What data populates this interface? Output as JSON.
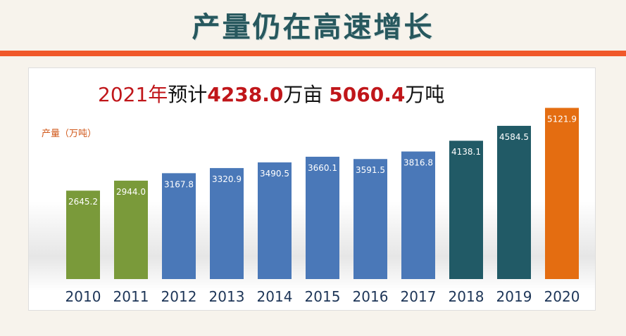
{
  "page": {
    "title": "产量仍在高速增长"
  },
  "headline": {
    "year": "2021年",
    "part1": "预计",
    "area_value": "4238.0",
    "area_unit": "万亩",
    "output_value": "5060.4",
    "output_unit": "万吨"
  },
  "colors": {
    "title": "#27585e",
    "rule": "#f0582a",
    "green": "#7a9a3a",
    "blue": "#4a78b8",
    "teal": "#215a66",
    "orange": "#e46d11",
    "axis_text": "#1d3557"
  },
  "chart_data": {
    "type": "bar",
    "title": "",
    "ylabel": "产量（万吨）",
    "xlabel": "",
    "categories": [
      "2010",
      "2011",
      "2012",
      "2013",
      "2014",
      "2015",
      "2016",
      "2017",
      "2018",
      "2019",
      "2020"
    ],
    "values": [
      2645.2,
      2944.0,
      3167.8,
      3320.9,
      3490.5,
      3660.1,
      3591.5,
      3816.8,
      4138.1,
      4584.5,
      5121.9
    ],
    "value_labels": [
      "2645.2",
      "2944.0",
      "3167.8",
      "3320.9",
      "3490.5",
      "3660.1",
      "3591.5",
      "3816.8",
      "4138.1",
      "4584.5",
      "5121.9"
    ],
    "bar_colors": [
      "#7a9a3a",
      "#7a9a3a",
      "#4a78b8",
      "#4a78b8",
      "#4a78b8",
      "#4a78b8",
      "#4a78b8",
      "#4a78b8",
      "#215a66",
      "#215a66",
      "#e46d11"
    ],
    "ylim": [
      0,
      5300
    ],
    "grid": false,
    "legend": "none"
  }
}
